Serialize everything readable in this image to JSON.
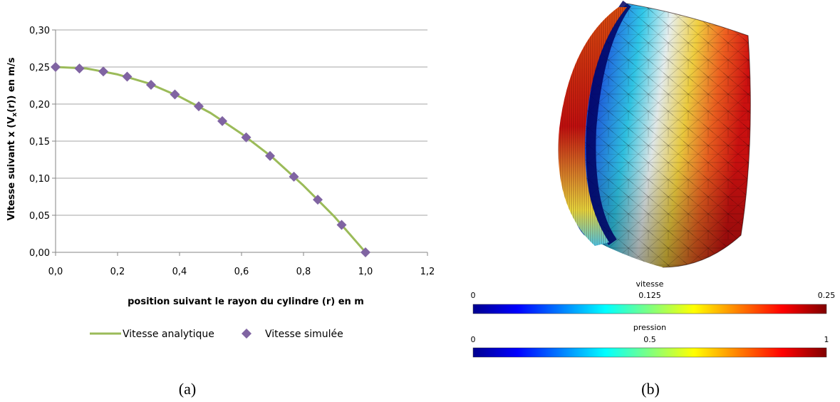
{
  "chart_data": [
    {
      "type": "line",
      "title": "",
      "xlabel": "position suivant le rayon du cylindre (r) en m",
      "ylabel": "Vitesse suivant x (Vₓ(r)) en m/s",
      "xlim": [
        0.0,
        1.2
      ],
      "ylim": [
        0.0,
        0.3
      ],
      "xticks": [
        "0,0",
        "0,2",
        "0,4",
        "0,6",
        "0,8",
        "1,0",
        "1,2"
      ],
      "yticks": [
        "0,00",
        "0,05",
        "0,10",
        "0,15",
        "0,20",
        "0,25",
        "0,30"
      ],
      "grid": "horizontal",
      "legend_position": "bottom",
      "series": [
        {
          "name": "Vitesse analytique",
          "kind": "line",
          "color": "#9bbb59",
          "x": [
            0.0,
            0.05,
            0.1,
            0.15,
            0.2,
            0.25,
            0.3,
            0.35,
            0.4,
            0.45,
            0.5,
            0.55,
            0.6,
            0.65,
            0.7,
            0.75,
            0.8,
            0.85,
            0.9,
            0.95,
            1.0
          ],
          "y": [
            0.25,
            0.249,
            0.248,
            0.244,
            0.24,
            0.234,
            0.228,
            0.219,
            0.21,
            0.199,
            0.188,
            0.174,
            0.16,
            0.144,
            0.128,
            0.109,
            0.09,
            0.069,
            0.048,
            0.024,
            0.0
          ]
        },
        {
          "name": "Vitesse simulée",
          "kind": "scatter",
          "marker": "diamond",
          "color": "#8064a2",
          "x": [
            0.0,
            0.077,
            0.154,
            0.231,
            0.308,
            0.385,
            0.462,
            0.538,
            0.615,
            0.692,
            0.769,
            0.846,
            0.923,
            1.0
          ],
          "y": [
            0.25,
            0.248,
            0.244,
            0.237,
            0.226,
            0.213,
            0.197,
            0.177,
            0.155,
            0.13,
            0.102,
            0.071,
            0.037,
            0.0
          ]
        }
      ]
    },
    {
      "type": "heatmap",
      "colorbars": [
        {
          "title": "vitesse",
          "ticks": [
            "0",
            "0.125",
            "0.25"
          ],
          "range": [
            0,
            0.25
          ]
        },
        {
          "title": "pression",
          "ticks": [
            "0",
            "0.5",
            "1"
          ],
          "range": [
            0,
            1
          ]
        }
      ],
      "colormap": [
        "#00008f",
        "#0060ff",
        "#00ffff",
        "#80ff80",
        "#ffff00",
        "#ff8000",
        "#ff0000",
        "#800000"
      ]
    }
  ],
  "captions": {
    "left": "(a)",
    "right": "(b)"
  }
}
